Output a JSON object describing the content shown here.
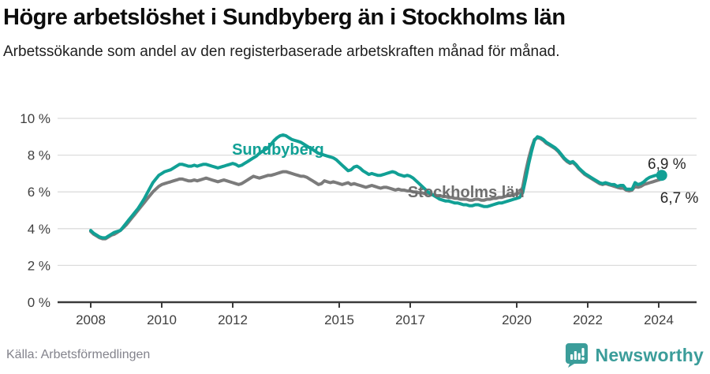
{
  "header": {
    "title": "Högre arbetslöshet i Sundbyberg än i Stockholms län",
    "subtitle": "Arbetssökande som andel av den registerbaserade arbetskraften månad för månad."
  },
  "footer": {
    "source": "Källa: Arbetsförmedlingen",
    "brand": "Newsworthy",
    "brand_color": "#3b9d9a",
    "logo_icon": "bar-chart-speech-bubble-icon"
  },
  "colors": {
    "sundbyberg": "#11a095",
    "stockholm": "#7b7b7b",
    "stockholm_label": "#6e6e6e",
    "grid": "#dcdcdc",
    "axis": "#3a3a3a",
    "tick_label": "#3f3f3f",
    "end_label": "#262626"
  },
  "chart_data": {
    "type": "line",
    "title": "Högre arbetslöshet i Sundbyberg än i Stockholms län",
    "ylabel": "Arbetssökande som andel av den registerbaserade arbetskraften",
    "xlabel": "",
    "grid": true,
    "legend_position": "inline-labels",
    "x_start_year": 2008,
    "x_step_months": 1,
    "xlim": [
      2007.1,
      2025.0
    ],
    "ylim": [
      0,
      10
    ],
    "x_ticks": [
      2008,
      2010,
      2012,
      2015,
      2017,
      2020,
      2022,
      2024
    ],
    "y_ticks": [
      {
        "v": 0,
        "label": "0 %"
      },
      {
        "v": 2,
        "label": "2 %"
      },
      {
        "v": 4,
        "label": "4 %"
      },
      {
        "v": 6,
        "label": "6 %"
      },
      {
        "v": 8,
        "label": "8 %"
      },
      {
        "v": 10,
        "label": "10 %"
      }
    ],
    "series": [
      {
        "name": "Stockholms län",
        "color": "#7b7b7b",
        "end_dot": false,
        "values": [
          3.85,
          3.7,
          3.6,
          3.5,
          3.45,
          3.45,
          3.55,
          3.65,
          3.7,
          3.8,
          3.9,
          4.05,
          4.2,
          4.4,
          4.6,
          4.8,
          5.0,
          5.2,
          5.4,
          5.6,
          5.8,
          6.0,
          6.15,
          6.3,
          6.4,
          6.45,
          6.5,
          6.55,
          6.6,
          6.65,
          6.7,
          6.7,
          6.65,
          6.6,
          6.6,
          6.65,
          6.6,
          6.65,
          6.7,
          6.75,
          6.7,
          6.65,
          6.6,
          6.55,
          6.6,
          6.65,
          6.6,
          6.55,
          6.5,
          6.45,
          6.4,
          6.45,
          6.55,
          6.65,
          6.75,
          6.85,
          6.8,
          6.75,
          6.8,
          6.85,
          6.9,
          6.9,
          6.95,
          7.0,
          7.05,
          7.1,
          7.1,
          7.05,
          7.0,
          6.95,
          6.9,
          6.85,
          6.85,
          6.8,
          6.7,
          6.6,
          6.5,
          6.4,
          6.45,
          6.6,
          6.55,
          6.5,
          6.55,
          6.5,
          6.45,
          6.4,
          6.45,
          6.5,
          6.4,
          6.45,
          6.4,
          6.35,
          6.3,
          6.25,
          6.3,
          6.35,
          6.3,
          6.25,
          6.2,
          6.25,
          6.25,
          6.2,
          6.15,
          6.1,
          6.15,
          6.1,
          6.1,
          6.05,
          6.05,
          6.0,
          6.0,
          5.95,
          5.95,
          5.9,
          5.9,
          5.85,
          5.85,
          5.8,
          5.8,
          5.75,
          5.75,
          5.7,
          5.7,
          5.65,
          5.65,
          5.6,
          5.6,
          5.6,
          5.55,
          5.55,
          5.6,
          5.6,
          5.55,
          5.55,
          5.6,
          5.6,
          5.65,
          5.65,
          5.7,
          5.7,
          5.75,
          5.8,
          5.8,
          5.85,
          5.9,
          5.95,
          6.25,
          7.1,
          7.8,
          8.4,
          8.85,
          8.95,
          8.9,
          8.8,
          8.65,
          8.55,
          8.45,
          8.35,
          8.2,
          8.0,
          7.8,
          7.65,
          7.55,
          7.6,
          7.45,
          7.25,
          7.1,
          6.95,
          6.85,
          6.75,
          6.65,
          6.55,
          6.45,
          6.4,
          6.45,
          6.4,
          6.35,
          6.3,
          6.25,
          6.2,
          6.2,
          6.1,
          6.05,
          6.1,
          6.3,
          6.25,
          6.3,
          6.4,
          6.45,
          6.5,
          6.55,
          6.6,
          6.65,
          6.7
        ]
      },
      {
        "name": "Sundbyberg",
        "color": "#11a095",
        "end_dot": true,
        "values": [
          3.9,
          3.75,
          3.65,
          3.55,
          3.5,
          3.5,
          3.6,
          3.7,
          3.8,
          3.85,
          3.9,
          4.1,
          4.3,
          4.5,
          4.7,
          4.9,
          5.1,
          5.35,
          5.6,
          5.9,
          6.2,
          6.5,
          6.7,
          6.9,
          7.0,
          7.1,
          7.15,
          7.2,
          7.3,
          7.4,
          7.5,
          7.5,
          7.45,
          7.4,
          7.4,
          7.45,
          7.4,
          7.45,
          7.5,
          7.5,
          7.45,
          7.4,
          7.35,
          7.3,
          7.35,
          7.4,
          7.45,
          7.5,
          7.55,
          7.5,
          7.4,
          7.45,
          7.55,
          7.65,
          7.75,
          7.85,
          7.95,
          8.1,
          8.2,
          8.3,
          8.4,
          8.6,
          8.8,
          8.95,
          9.05,
          9.1,
          9.05,
          8.95,
          8.85,
          8.8,
          8.75,
          8.7,
          8.6,
          8.5,
          8.4,
          8.3,
          8.2,
          8.1,
          8.05,
          8.0,
          7.95,
          7.9,
          7.85,
          7.75,
          7.6,
          7.45,
          7.3,
          7.15,
          7.2,
          7.35,
          7.4,
          7.3,
          7.15,
          7.05,
          6.95,
          7.0,
          6.95,
          6.9,
          6.9,
          6.95,
          7.0,
          7.05,
          7.1,
          7.05,
          6.95,
          6.9,
          6.85,
          6.9,
          6.85,
          6.75,
          6.6,
          6.45,
          6.3,
          6.15,
          6.0,
          5.9,
          5.8,
          5.7,
          5.6,
          5.55,
          5.5,
          5.5,
          5.45,
          5.4,
          5.4,
          5.35,
          5.3,
          5.3,
          5.25,
          5.25,
          5.3,
          5.3,
          5.25,
          5.2,
          5.2,
          5.25,
          5.3,
          5.35,
          5.4,
          5.4,
          5.45,
          5.5,
          5.55,
          5.6,
          5.65,
          5.7,
          5.95,
          6.7,
          7.5,
          8.2,
          8.8,
          9.0,
          8.95,
          8.85,
          8.7,
          8.6,
          8.5,
          8.4,
          8.25,
          8.05,
          7.85,
          7.7,
          7.6,
          7.65,
          7.5,
          7.3,
          7.15,
          7.0,
          6.9,
          6.8,
          6.7,
          6.6,
          6.5,
          6.45,
          6.5,
          6.45,
          6.4,
          6.4,
          6.3,
          6.35,
          6.35,
          6.15,
          6.15,
          6.15,
          6.5,
          6.4,
          6.45,
          6.55,
          6.7,
          6.8,
          6.85,
          6.9,
          6.9,
          6.9
        ]
      }
    ],
    "annotations": [
      {
        "text": "Sundbyberg",
        "year": 2011.98,
        "value": 8.03,
        "color": "#11a095",
        "bold": true,
        "size": 20,
        "name": "sundbyberg-series-label"
      },
      {
        "text": "Stockholms län",
        "year": 2016.93,
        "value": 5.71,
        "color": "#6e6e6e",
        "bold": true,
        "size": 20,
        "name": "stockholm-series-label"
      },
      {
        "text": "6,9 %",
        "year": 2023.69,
        "value": 7.25,
        "color": "#262626",
        "bold": false,
        "size": 19,
        "name": "sundbyberg-end-value-label"
      },
      {
        "text": "6,7 %",
        "year": 2024.04,
        "value": 5.41,
        "color": "#262626",
        "bold": false,
        "size": 19,
        "name": "stockholm-end-value-label"
      }
    ]
  }
}
